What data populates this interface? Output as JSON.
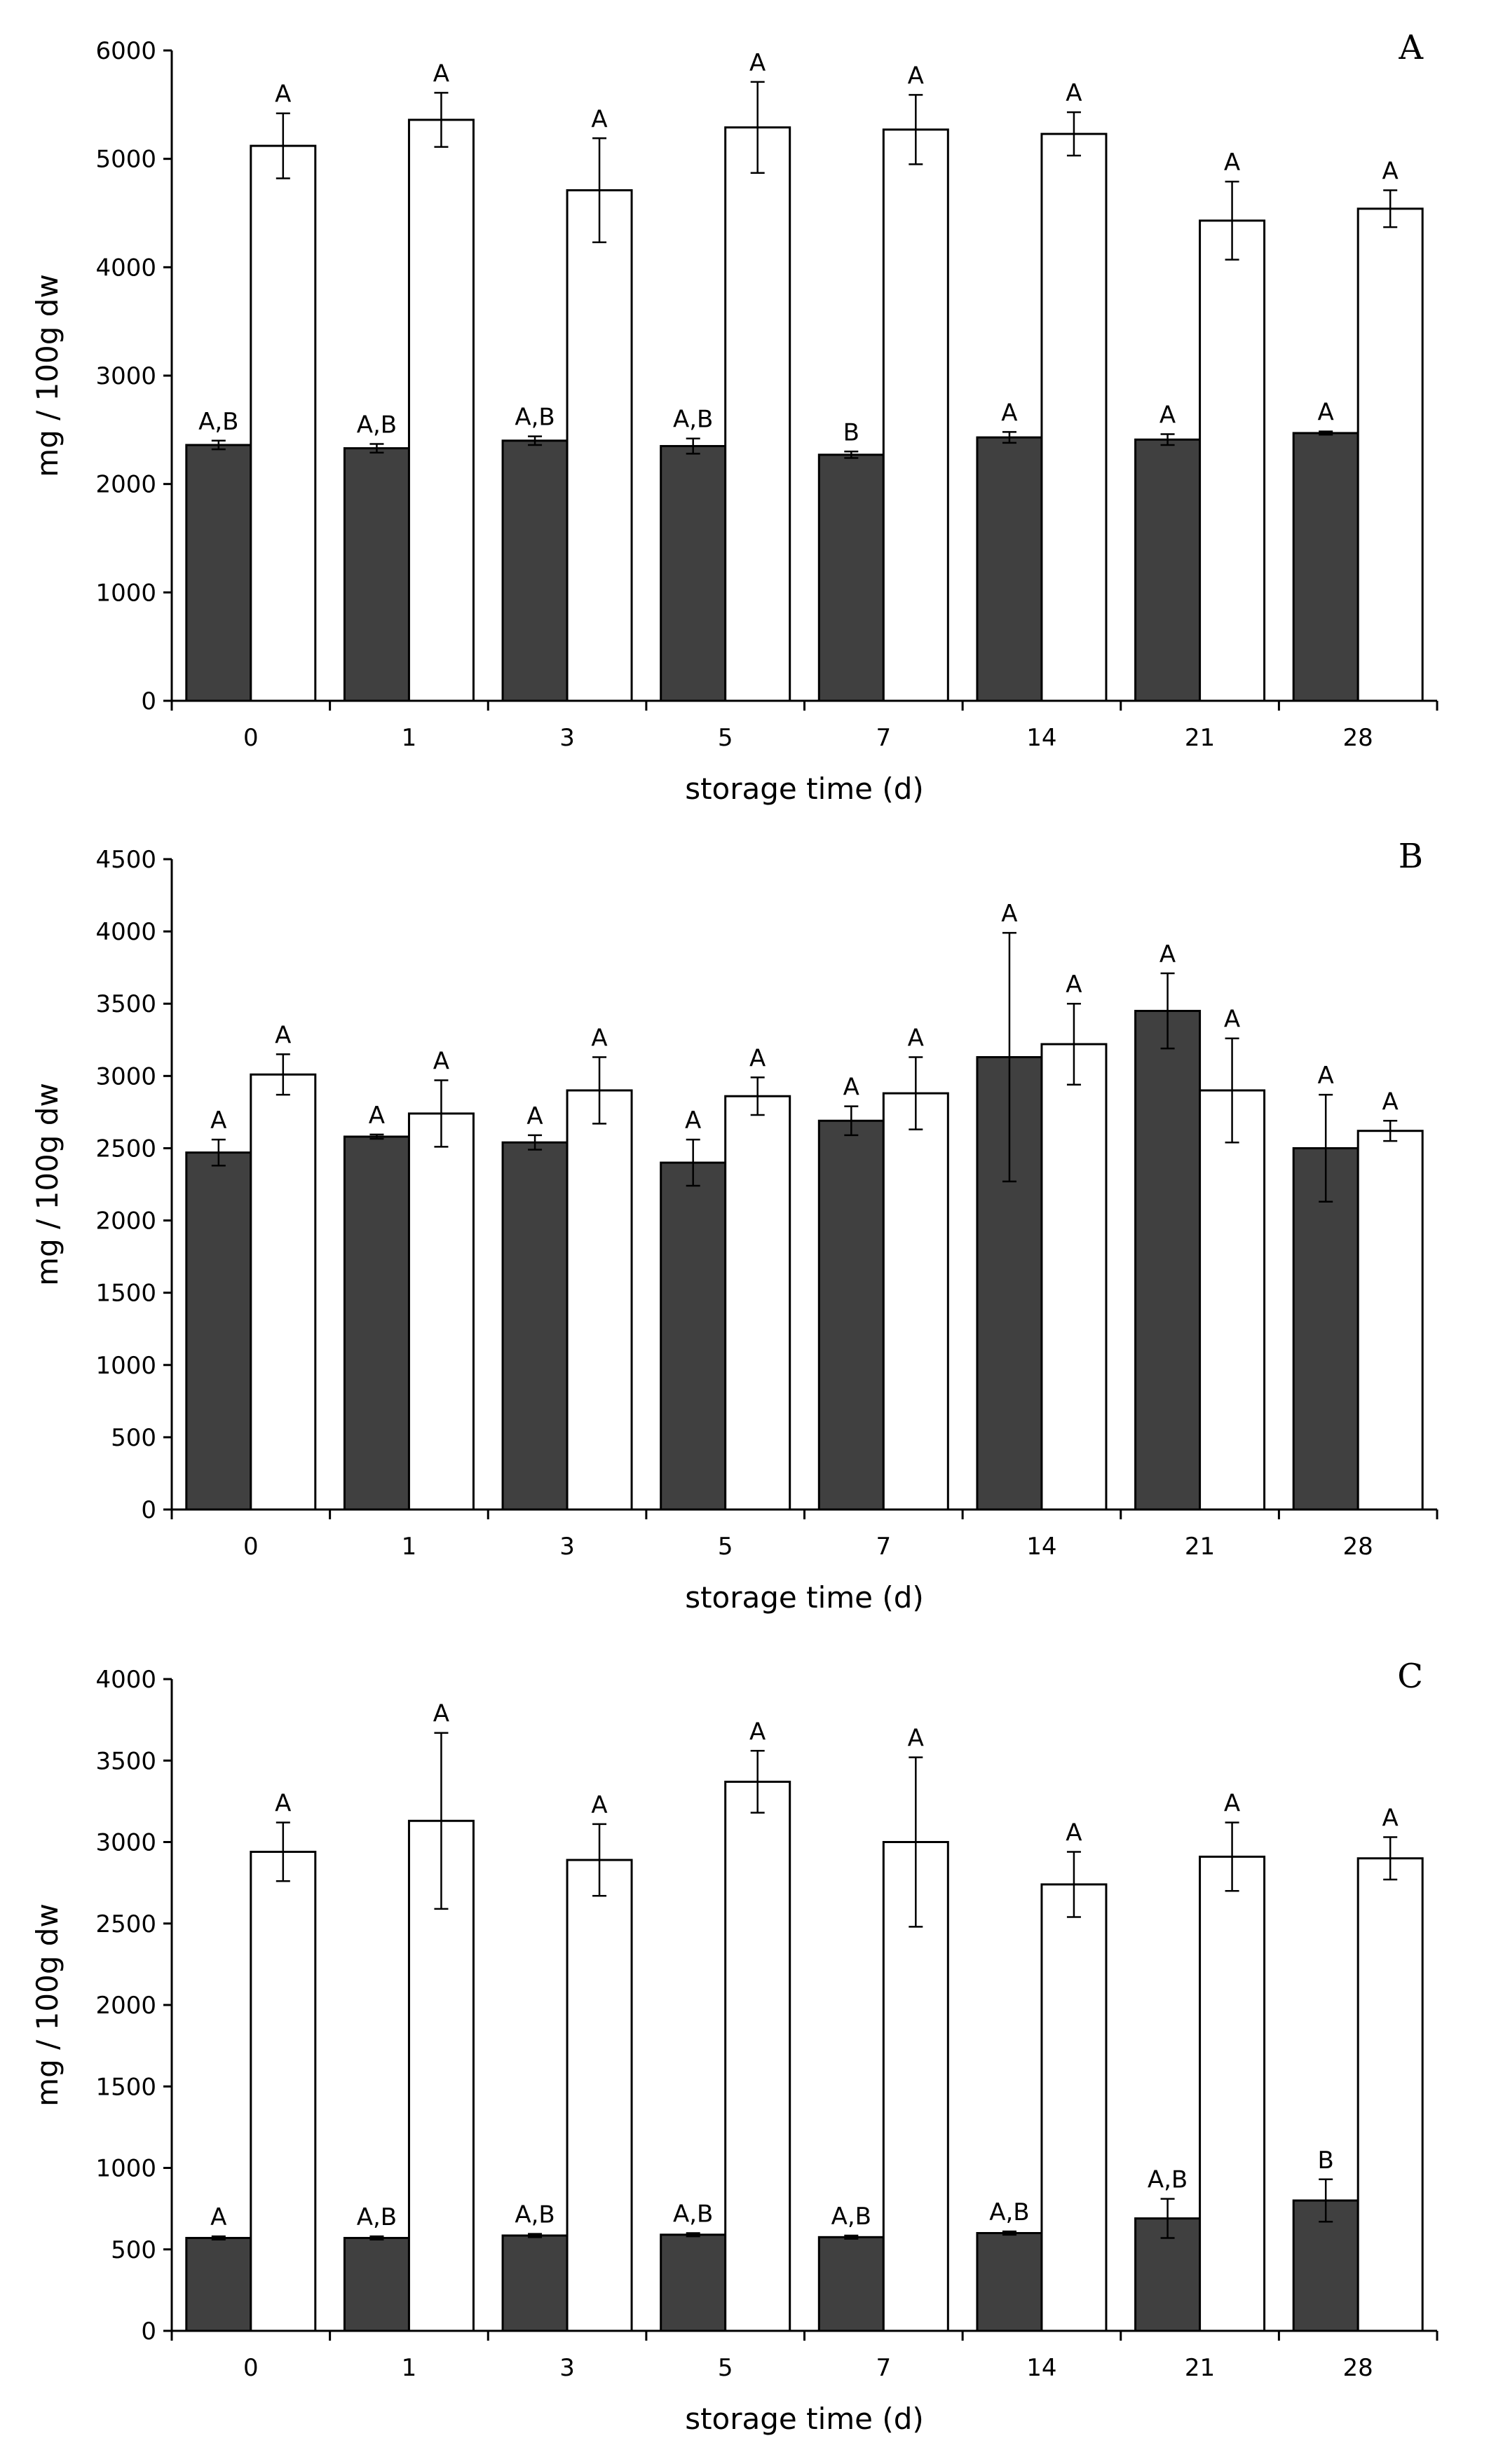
{
  "chart_data": [
    {
      "type": "bar",
      "panel_label": "A",
      "xlabel": "storage time (d)",
      "ylabel": "mg / 100g dw",
      "ylim": [
        0,
        6000
      ],
      "yticks": [
        0,
        1000,
        2000,
        3000,
        4000,
        5000,
        6000
      ],
      "categories": [
        "0",
        "1",
        "3",
        "5",
        "7",
        "14",
        "21",
        "28"
      ],
      "series": [
        {
          "name": "dark",
          "color": "#404040",
          "values": [
            2360,
            2330,
            2400,
            2350,
            2270,
            2430,
            2410,
            2470
          ],
          "errors": [
            40,
            40,
            40,
            70,
            30,
            50,
            50,
            15
          ],
          "labels": [
            "A,B",
            "A,B",
            "A,B",
            "A,B",
            "B",
            "A",
            "A",
            "A"
          ]
        },
        {
          "name": "white",
          "color": "#ffffff",
          "values": [
            5120,
            5360,
            4710,
            5290,
            5270,
            5230,
            4430,
            4540
          ],
          "errors": [
            300,
            250,
            480,
            420,
            320,
            200,
            360,
            170
          ],
          "labels": [
            "A",
            "A",
            "A",
            "A",
            "A",
            "A",
            "A",
            "A"
          ]
        }
      ]
    },
    {
      "type": "bar",
      "panel_label": "B",
      "xlabel": "storage time (d)",
      "ylabel": "mg / 100g dw",
      "ylim": [
        0,
        4500
      ],
      "yticks": [
        0,
        500,
        1000,
        1500,
        2000,
        2500,
        3000,
        3500,
        4000,
        4500
      ],
      "categories": [
        "0",
        "1",
        "3",
        "5",
        "7",
        "14",
        "21",
        "28"
      ],
      "series": [
        {
          "name": "dark",
          "color": "#404040",
          "values": [
            2470,
            2580,
            2540,
            2400,
            2690,
            3130,
            3450,
            2500
          ],
          "errors": [
            90,
            15,
            50,
            160,
            100,
            860,
            260,
            370
          ],
          "labels": [
            "A",
            "A",
            "A",
            "A",
            "A",
            "A",
            "A",
            "A"
          ]
        },
        {
          "name": "white",
          "color": "#ffffff",
          "values": [
            3010,
            2740,
            2900,
            2860,
            2880,
            3220,
            2900,
            2620
          ],
          "errors": [
            140,
            230,
            230,
            130,
            250,
            280,
            360,
            70
          ],
          "labels": [
            "A",
            "A",
            "A",
            "A",
            "A",
            "A",
            "A",
            "A"
          ]
        }
      ]
    },
    {
      "type": "bar",
      "panel_label": "C",
      "xlabel": "storage time (d)",
      "ylabel": "mg / 100g dw",
      "ylim": [
        0,
        4000
      ],
      "yticks": [
        0,
        500,
        1000,
        1500,
        2000,
        2500,
        3000,
        3500,
        4000
      ],
      "categories": [
        "0",
        "1",
        "3",
        "5",
        "7",
        "14",
        "21",
        "28"
      ],
      "series": [
        {
          "name": "dark",
          "color": "#404040",
          "values": [
            570,
            570,
            585,
            590,
            575,
            600,
            690,
            800
          ],
          "errors": [
            10,
            10,
            10,
            10,
            10,
            10,
            120,
            130
          ],
          "labels": [
            "A",
            "A,B",
            "A,B",
            "A,B",
            "A,B",
            "A,B",
            "A,B",
            "B"
          ]
        },
        {
          "name": "white",
          "color": "#ffffff",
          "values": [
            2940,
            3130,
            2890,
            3370,
            3000,
            2740,
            2910,
            2900
          ],
          "errors": [
            180,
            540,
            220,
            190,
            520,
            200,
            210,
            130
          ],
          "labels": [
            "A",
            "A",
            "A",
            "A",
            "A",
            "A",
            "A",
            "A"
          ]
        }
      ]
    }
  ]
}
